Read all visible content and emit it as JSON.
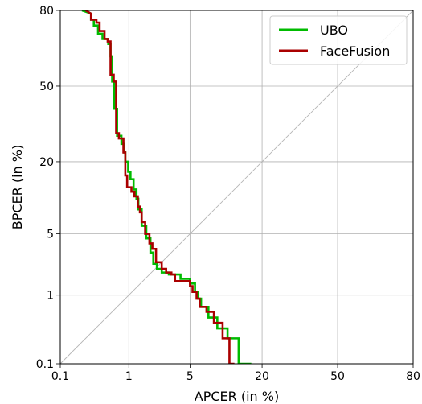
{
  "chart_data": {
    "type": "line",
    "title": "",
    "xlabel": "APCER (in %)",
    "ylabel": "BPCER (in %)",
    "scale": "probit",
    "x_ticks": [
      {
        "v": 0.1,
        "label": "0.1"
      },
      {
        "v": 1,
        "label": "1"
      },
      {
        "v": 5,
        "label": "5"
      },
      {
        "v": 20,
        "label": "20"
      },
      {
        "v": 50,
        "label": "50"
      },
      {
        "v": 80,
        "label": "80"
      }
    ],
    "y_ticks": [
      {
        "v": 0.1,
        "label": "0.1"
      },
      {
        "v": 1,
        "label": "1"
      },
      {
        "v": 5,
        "label": "5"
      },
      {
        "v": 20,
        "label": "20"
      },
      {
        "v": 50,
        "label": "50"
      },
      {
        "v": 80,
        "label": "80"
      }
    ],
    "xlim": [
      0.1,
      80
    ],
    "ylim": [
      0.1,
      80
    ],
    "grid": true,
    "diagonal": true,
    "legend_position": "top-right",
    "series": [
      {
        "name": "UBO",
        "color": "#00bb00",
        "points": [
          [
            0.22,
            80
          ],
          [
            0.3,
            79
          ],
          [
            0.3,
            77
          ],
          [
            0.33,
            77
          ],
          [
            0.33,
            75
          ],
          [
            0.38,
            75
          ],
          [
            0.38,
            72
          ],
          [
            0.44,
            72
          ],
          [
            0.44,
            70
          ],
          [
            0.53,
            70
          ],
          [
            0.53,
            68
          ],
          [
            0.57,
            68
          ],
          [
            0.57,
            63
          ],
          [
            0.6,
            63
          ],
          [
            0.6,
            52
          ],
          [
            0.64,
            52
          ],
          [
            0.64,
            40
          ],
          [
            0.7,
            40
          ],
          [
            0.7,
            29
          ],
          [
            0.8,
            29
          ],
          [
            0.8,
            26
          ],
          [
            0.87,
            26
          ],
          [
            0.87,
            23
          ],
          [
            0.9,
            23
          ],
          [
            0.9,
            20
          ],
          [
            0.98,
            20
          ],
          [
            0.98,
            17
          ],
          [
            1.05,
            17
          ],
          [
            1.05,
            15
          ],
          [
            1.15,
            15
          ],
          [
            1.15,
            12.5
          ],
          [
            1.25,
            12.5
          ],
          [
            1.25,
            10.5
          ],
          [
            1.32,
            10.5
          ],
          [
            1.32,
            8.5
          ],
          [
            1.45,
            8.5
          ],
          [
            1.45,
            6
          ],
          [
            1.65,
            6
          ],
          [
            1.65,
            4.5
          ],
          [
            1.85,
            4.5
          ],
          [
            1.85,
            3.2
          ],
          [
            2.0,
            3.2
          ],
          [
            2.0,
            2.4
          ],
          [
            2.2,
            2.4
          ],
          [
            2.2,
            2.1
          ],
          [
            2.5,
            2.1
          ],
          [
            2.5,
            1.9
          ],
          [
            3.0,
            1.9
          ],
          [
            3.0,
            1.8
          ],
          [
            4.0,
            1.8
          ],
          [
            4.0,
            1.6
          ],
          [
            5.0,
            1.6
          ],
          [
            5.0,
            1.4
          ],
          [
            5.6,
            1.4
          ],
          [
            5.6,
            1.1
          ],
          [
            6.0,
            1.1
          ],
          [
            6.0,
            0.9
          ],
          [
            6.4,
            0.9
          ],
          [
            6.4,
            0.7
          ],
          [
            7.5,
            0.7
          ],
          [
            7.5,
            0.5
          ],
          [
            9.0,
            0.5
          ],
          [
            9.0,
            0.35
          ],
          [
            11.0,
            0.35
          ],
          [
            11.0,
            0.25
          ],
          [
            13.5,
            0.25
          ],
          [
            13.5,
            0.1
          ],
          [
            16.8,
            0.1
          ]
        ]
      },
      {
        "name": "FaceFusion",
        "color": "#aa0000",
        "points": [
          [
            0.25,
            80
          ],
          [
            0.3,
            79
          ],
          [
            0.3,
            77
          ],
          [
            0.36,
            77
          ],
          [
            0.36,
            76
          ],
          [
            0.4,
            76
          ],
          [
            0.4,
            73
          ],
          [
            0.47,
            73
          ],
          [
            0.47,
            70
          ],
          [
            0.52,
            70
          ],
          [
            0.52,
            69
          ],
          [
            0.57,
            69
          ],
          [
            0.57,
            55
          ],
          [
            0.63,
            55
          ],
          [
            0.63,
            52
          ],
          [
            0.68,
            52
          ],
          [
            0.68,
            30
          ],
          [
            0.74,
            30
          ],
          [
            0.74,
            28
          ],
          [
            0.85,
            28
          ],
          [
            0.85,
            23
          ],
          [
            0.9,
            23
          ],
          [
            0.9,
            16
          ],
          [
            0.95,
            16
          ],
          [
            0.95,
            13
          ],
          [
            1.08,
            13
          ],
          [
            1.08,
            12
          ],
          [
            1.18,
            12
          ],
          [
            1.18,
            11
          ],
          [
            1.3,
            11
          ],
          [
            1.3,
            9
          ],
          [
            1.38,
            9
          ],
          [
            1.38,
            8
          ],
          [
            1.45,
            8
          ],
          [
            1.45,
            6.5
          ],
          [
            1.6,
            6.5
          ],
          [
            1.6,
            5
          ],
          [
            1.8,
            5
          ],
          [
            1.8,
            4
          ],
          [
            1.95,
            4
          ],
          [
            1.95,
            3.5
          ],
          [
            2.15,
            3.5
          ],
          [
            2.15,
            2.5
          ],
          [
            2.5,
            2.5
          ],
          [
            2.5,
            2.1
          ],
          [
            2.8,
            2.1
          ],
          [
            2.8,
            1.9
          ],
          [
            3.2,
            1.9
          ],
          [
            3.2,
            1.8
          ],
          [
            3.5,
            1.8
          ],
          [
            3.5,
            1.5
          ],
          [
            5.0,
            1.5
          ],
          [
            5.0,
            1.3
          ],
          [
            5.3,
            1.3
          ],
          [
            5.3,
            1.1
          ],
          [
            5.8,
            1.1
          ],
          [
            5.8,
            0.9
          ],
          [
            6.2,
            0.9
          ],
          [
            6.2,
            0.7
          ],
          [
            7.2,
            0.7
          ],
          [
            7.2,
            0.6
          ],
          [
            8.4,
            0.6
          ],
          [
            8.4,
            0.42
          ],
          [
            10.0,
            0.42
          ],
          [
            10.0,
            0.25
          ],
          [
            11.4,
            0.25
          ],
          [
            11.4,
            0.1
          ],
          [
            12.5,
            0.1
          ]
        ]
      }
    ]
  }
}
